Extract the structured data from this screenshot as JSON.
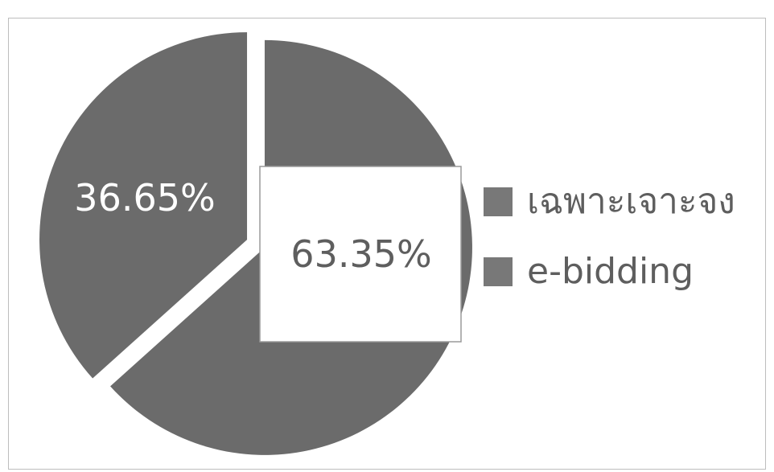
{
  "chart_data": {
    "type": "pie",
    "title": "",
    "categories": [
      "เฉพาะเจาะจง",
      "e-bidding"
    ],
    "values": [
      36.65,
      63.35
    ],
    "data_labels": [
      "36.65%",
      "63.35%"
    ],
    "legend": {
      "position": "right",
      "entries": [
        "เฉพาะเจาะจง",
        "e-bidding"
      ]
    },
    "exploded": true,
    "colors": {
      "slice": "#6b6b6b",
      "legend_swatch": "#787878",
      "label_on_slice": "#ffffff",
      "label_box_text": "#5e5e5e",
      "label_box_fill": "#ffffff",
      "label_box_border": "#9a9a9a"
    }
  }
}
